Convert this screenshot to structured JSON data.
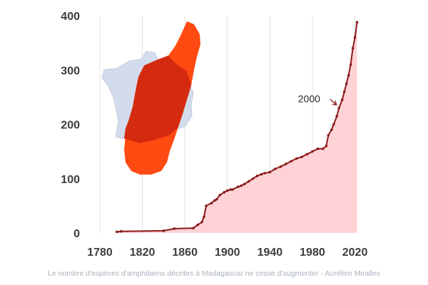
{
  "chart_data": {
    "type": "area",
    "x": [
      1796,
      1800,
      1840,
      1850,
      1868,
      1872,
      1876,
      1878,
      1880,
      1885,
      1888,
      1890,
      1893,
      1897,
      1900,
      1903,
      1905,
      1910,
      1913,
      1916,
      1920,
      1924,
      1928,
      1932,
      1935,
      1940,
      1945,
      1950,
      1955,
      1960,
      1965,
      1970,
      1975,
      1980,
      1985,
      1990,
      1993,
      1995,
      1998,
      2000,
      2003,
      2005,
      2008,
      2010,
      2012,
      2014,
      2016,
      2018,
      2020,
      2022
    ],
    "y": [
      2,
      3,
      4,
      8,
      9,
      15,
      20,
      30,
      50,
      55,
      60,
      62,
      70,
      75,
      78,
      80,
      80,
      85,
      87,
      90,
      95,
      100,
      105,
      108,
      110,
      112,
      118,
      122,
      127,
      132,
      137,
      140,
      145,
      150,
      155,
      155,
      160,
      180,
      190,
      200,
      215,
      230,
      245,
      260,
      275,
      290,
      310,
      340,
      360,
      388
    ],
    "xlim": [
      1780,
      2025
    ],
    "ylim": [
      0,
      400
    ],
    "xticks": [
      "1780",
      "1820",
      "1860",
      "1900",
      "1940",
      "1980",
      "2020"
    ],
    "yticks": [
      "0",
      "100",
      "200",
      "300",
      "400"
    ],
    "grid": "vertical",
    "annotation": {
      "text": "2000",
      "x": 2000,
      "y": 220
    },
    "colors": {
      "line": "#8b1a1a",
      "fill": "#ffd3d6",
      "map_france": "#d3dcec",
      "map_madagascar": "#ff4a12",
      "map_overlap": "#d42b10"
    }
  },
  "caption": "Le nombre d'espèces d'amphibiens décrites à Madagascar ne cesse d'augmenter - Aurélien Miralles"
}
